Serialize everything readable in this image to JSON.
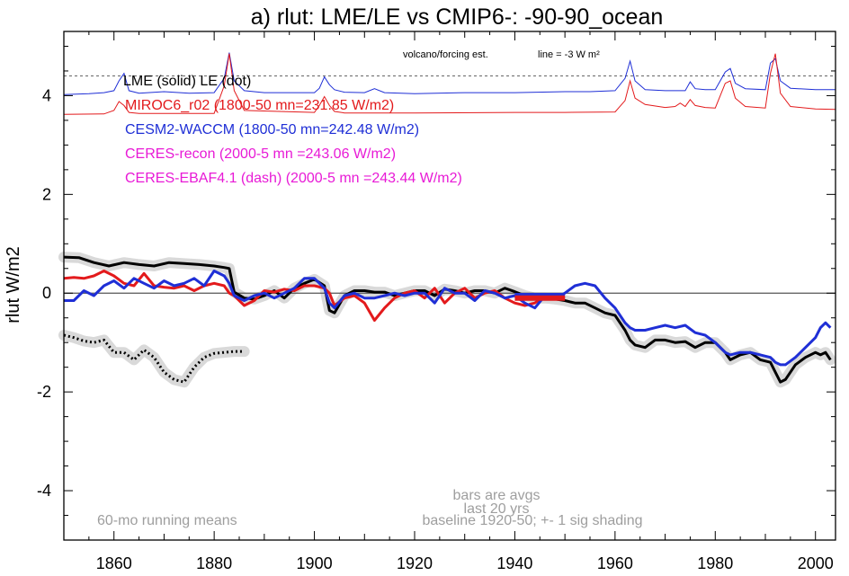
{
  "chart_data": {
    "type": "line",
    "title": "a) rlut: LME/LE vs CMIP6-: -90-90_ocean",
    "ylabel": "rlut W/m2",
    "xlabel": "",
    "xlim": [
      1850,
      2004
    ],
    "ylim": [
      -5,
      5.3
    ],
    "xticks": [
      1860,
      1880,
      1900,
      1920,
      1940,
      1960,
      1980,
      2000
    ],
    "yticks": [
      4,
      2,
      0,
      -2,
      -4
    ],
    "legend": [
      {
        "text": "LME (solid)   LE (dot)",
        "color": "#000000"
      },
      {
        "text": "MIROC6_r02 (1800-50 mn=231.85 W/m2)",
        "color": "#e31a1c"
      },
      {
        "text": "CESM2-WACCM (1800-50 mn=242.48 W/m2)",
        "color": "#1f2fd6"
      },
      {
        "text": "CERES-recon (2000-5 mn =243.06 W/m2)",
        "color": "#e81ad6"
      },
      {
        "text": "CERES-EBAF4.1 (dash) (2000-5 mn =243.44 W/m2)",
        "color": "#e81ad6"
      }
    ],
    "annotations": {
      "volcano_label": "volcano/forcing est.",
      "line_label": "line = -3 W m²",
      "bars_note_1": "bars are avgs",
      "bars_note_2": "last 20 yrs",
      "baseline_note": "baseline 1920-50; +- 1 sig shading",
      "running_means": "60-mo running means"
    },
    "reference_line_y": 4.4,
    "series": [
      {
        "name": "LME (solid)",
        "color": "#000000",
        "width": 3,
        "x": [
          1850,
          1853,
          1856,
          1859,
          1862,
          1865,
          1868,
          1871,
          1874,
          1877,
          1880,
          1882,
          1883,
          1884,
          1886,
          1888,
          1890,
          1892,
          1894,
          1896,
          1898,
          1900,
          1902,
          1903,
          1904,
          1906,
          1908,
          1910,
          1912,
          1914,
          1916,
          1918,
          1920,
          1922,
          1924,
          1926,
          1928,
          1930,
          1932,
          1934,
          1936,
          1938,
          1940,
          1942,
          1944,
          1946,
          1948,
          1950,
          1952,
          1954,
          1956,
          1958,
          1960,
          1962,
          1963,
          1964,
          1966,
          1968,
          1970,
          1972,
          1974,
          1976,
          1978,
          1980,
          1982,
          1983,
          1985,
          1987,
          1989,
          1991,
          1992,
          1993,
          1994,
          1996,
          1998,
          2000,
          2001,
          2002,
          2003
        ],
        "y": [
          0.73,
          0.72,
          0.62,
          0.55,
          0.62,
          0.58,
          0.55,
          0.62,
          0.6,
          0.58,
          0.55,
          0.52,
          0.5,
          0.02,
          -0.1,
          -0.12,
          -0.05,
          0.05,
          -0.1,
          0.1,
          0.2,
          0.28,
          0.15,
          -0.35,
          -0.4,
          -0.05,
          0.05,
          0.05,
          0.02,
          0.02,
          -0.05,
          0.0,
          0.05,
          0.05,
          -0.05,
          0.08,
          0.05,
          0.0,
          0.05,
          0.05,
          0.0,
          0.1,
          0.03,
          -0.05,
          -0.1,
          -0.1,
          -0.12,
          -0.15,
          -0.2,
          -0.2,
          -0.3,
          -0.4,
          -0.45,
          -0.75,
          -0.95,
          -1.05,
          -1.1,
          -0.95,
          -0.95,
          -1.0,
          -0.98,
          -1.1,
          -1.0,
          -1.0,
          -1.2,
          -1.35,
          -1.25,
          -1.2,
          -1.35,
          -1.4,
          -1.6,
          -1.8,
          -1.75,
          -1.45,
          -1.3,
          -1.2,
          -1.25,
          -1.2,
          -1.35
        ]
      },
      {
        "name": "MIROC6_r02",
        "color": "#e31a1c",
        "width": 3,
        "x": [
          1850,
          1852,
          1854,
          1856,
          1858,
          1860,
          1862,
          1864,
          1866,
          1868,
          1870,
          1872,
          1874,
          1876,
          1878,
          1880,
          1882,
          1883,
          1884,
          1886,
          1888,
          1890,
          1892,
          1894,
          1896,
          1898,
          1900,
          1902,
          1903,
          1904,
          1906,
          1908,
          1910,
          1912,
          1914,
          1916,
          1918,
          1920,
          1922,
          1924,
          1926,
          1928,
          1930,
          1932,
          1934,
          1936,
          1938,
          1940,
          1942,
          1944,
          1946,
          1948,
          1950
        ],
        "y": [
          0.3,
          0.32,
          0.3,
          0.35,
          0.45,
          0.35,
          0.2,
          0.15,
          0.4,
          0.15,
          0.12,
          0.1,
          0.15,
          0.05,
          0.15,
          0.2,
          0.15,
          0.0,
          -0.05,
          -0.25,
          -0.15,
          0.05,
          0.02,
          0.08,
          0.05,
          0.15,
          0.15,
          0.1,
          0.0,
          -0.25,
          -0.1,
          -0.05,
          -0.2,
          -0.55,
          -0.3,
          -0.1,
          0.0,
          0.05,
          -0.1,
          0.1,
          -0.2,
          0.0,
          0.1,
          -0.1,
          0.0,
          0.05,
          -0.1,
          -0.2,
          -0.25,
          -0.2,
          -0.05,
          -0.1,
          -0.1
        ]
      },
      {
        "name": "CESM2-WACCM",
        "color": "#1f2fd6",
        "width": 3,
        "x": [
          1850,
          1852,
          1854,
          1856,
          1858,
          1860,
          1862,
          1864,
          1866,
          1868,
          1870,
          1872,
          1874,
          1876,
          1878,
          1880,
          1882,
          1883,
          1884,
          1886,
          1888,
          1890,
          1892,
          1894,
          1896,
          1898,
          1900,
          1902,
          1903,
          1904,
          1906,
          1908,
          1910,
          1912,
          1914,
          1916,
          1918,
          1920,
          1922,
          1924,
          1926,
          1928,
          1930,
          1932,
          1934,
          1936,
          1938,
          1940,
          1942,
          1944,
          1946,
          1948,
          1950,
          1952,
          1954,
          1956,
          1958,
          1960,
          1962,
          1963,
          1964,
          1966,
          1968,
          1970,
          1972,
          1974,
          1976,
          1978,
          1980,
          1982,
          1983,
          1985,
          1987,
          1989,
          1991,
          1992,
          1993,
          1994,
          1996,
          1998,
          2000,
          2001,
          2002,
          2003
        ],
        "y": [
          -0.15,
          -0.15,
          0.05,
          -0.05,
          0.15,
          0.25,
          0.1,
          0.3,
          0.2,
          0.1,
          0.25,
          0.15,
          0.2,
          0.3,
          0.15,
          0.45,
          0.35,
          0.2,
          -0.05,
          -0.15,
          -0.05,
          0.0,
          -0.1,
          0.0,
          0.1,
          0.3,
          0.3,
          0.1,
          -0.2,
          -0.3,
          -0.05,
          0.0,
          -0.1,
          -0.1,
          -0.05,
          0.0,
          -0.05,
          0.0,
          0.0,
          -0.2,
          0.1,
          0.0,
          0.0,
          -0.15,
          0.05,
          0.0,
          -0.1,
          -0.05,
          -0.2,
          -0.3,
          -0.05,
          -0.1,
          0.0,
          0.15,
          0.2,
          0.15,
          -0.1,
          -0.3,
          -0.6,
          -0.7,
          -0.75,
          -0.75,
          -0.7,
          -0.65,
          -0.7,
          -0.65,
          -0.8,
          -0.85,
          -1.0,
          -1.2,
          -1.25,
          -1.2,
          -1.2,
          -1.25,
          -1.3,
          -1.4,
          -1.45,
          -1.45,
          -1.3,
          -1.1,
          -0.9,
          -0.7,
          -0.6,
          -0.7
        ]
      },
      {
        "name": "LE (dot)",
        "color": "#000000",
        "dotted": true,
        "width": 3,
        "x": [
          1850,
          1852,
          1854,
          1856,
          1858,
          1860,
          1862,
          1864,
          1866,
          1868,
          1870,
          1872,
          1874,
          1876,
          1878,
          1880,
          1882,
          1884,
          1886
        ],
        "y": [
          -0.85,
          -0.9,
          -0.97,
          -1.0,
          -0.95,
          -1.2,
          -1.2,
          -1.35,
          -1.15,
          -1.3,
          -1.6,
          -1.75,
          -1.8,
          -1.5,
          -1.3,
          -1.22,
          -1.2,
          -1.18,
          -1.18
        ]
      }
    ],
    "bars": [
      {
        "name": "CESM2-WACCM avg",
        "color": "#1f2fd6",
        "x_start": 1940,
        "x_end": 1950,
        "y": -0.05
      },
      {
        "name": "MIROC6_r02 avg",
        "color": "#e31a1c",
        "x_start": 1940,
        "x_end": 1950,
        "y": -0.1
      }
    ],
    "forcing_traces": [
      {
        "name": "CESM2-WACCM forcing",
        "color": "#1f2fd6",
        "x": [
          1850,
          1855,
          1858,
          1860,
          1861,
          1862,
          1863,
          1865,
          1870,
          1875,
          1880,
          1882,
          1883,
          1884,
          1886,
          1890,
          1895,
          1900,
          1901,
          1902,
          1903,
          1904,
          1906,
          1910,
          1912,
          1914,
          1920,
          1930,
          1940,
          1950,
          1955,
          1960,
          1962,
          1963,
          1964,
          1966,
          1970,
          1974,
          1975,
          1976,
          1978,
          1980,
          1982,
          1983,
          1984,
          1986,
          1990,
          1991,
          1992,
          1993,
          1995,
          2000,
          2004
        ],
        "y": [
          4.02,
          4.04,
          4.06,
          4.1,
          4.3,
          4.45,
          4.1,
          4.05,
          4.08,
          4.05,
          4.06,
          4.35,
          4.87,
          4.3,
          4.1,
          4.06,
          4.06,
          4.06,
          4.15,
          4.38,
          4.22,
          4.12,
          4.07,
          4.06,
          4.14,
          4.06,
          4.04,
          4.06,
          4.06,
          4.08,
          4.08,
          4.1,
          4.35,
          4.7,
          4.3,
          4.12,
          4.1,
          4.1,
          4.28,
          4.14,
          4.12,
          4.12,
          4.48,
          4.55,
          4.25,
          4.14,
          4.12,
          4.66,
          4.75,
          4.3,
          4.15,
          4.12,
          4.12
        ]
      },
      {
        "name": "MIROC6_r02 forcing",
        "color": "#e31a1c",
        "x": [
          1850,
          1858,
          1860,
          1861,
          1862,
          1863,
          1865,
          1880,
          1882,
          1883,
          1884,
          1886,
          1900,
          1901,
          1902,
          1903,
          1904,
          1906,
          1920,
          1940,
          1950,
          1960,
          1962,
          1963,
          1964,
          1966,
          1970,
          1972,
          1973,
          1974,
          1975,
          1976,
          1978,
          1980,
          1982,
          1983,
          1984,
          1986,
          1990,
          1991,
          1992,
          1993,
          1995,
          2000,
          2004
        ],
        "y": [
          3.62,
          3.63,
          3.7,
          3.88,
          3.8,
          3.66,
          3.64,
          3.64,
          4.2,
          4.85,
          4.1,
          3.7,
          3.66,
          3.8,
          3.98,
          3.8,
          3.68,
          3.65,
          3.65,
          3.66,
          3.66,
          3.67,
          3.9,
          4.3,
          3.95,
          3.82,
          3.76,
          3.78,
          3.85,
          3.78,
          3.92,
          3.8,
          3.76,
          3.75,
          4.25,
          4.3,
          3.95,
          3.78,
          3.75,
          4.45,
          4.85,
          4.05,
          3.78,
          3.73,
          3.72
        ]
      }
    ]
  }
}
